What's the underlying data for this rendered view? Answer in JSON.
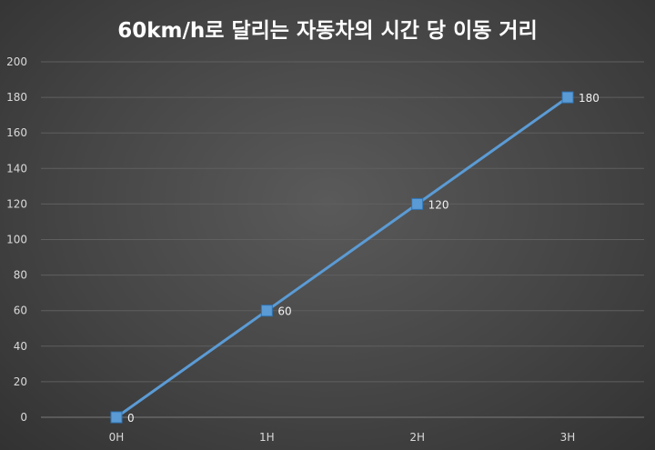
{
  "chart_data": {
    "type": "line",
    "title": "60km/h로 달리는 자동차의 시간 당 이동 거리",
    "categories": [
      "0H",
      "1H",
      "2H",
      "3H"
    ],
    "series": [
      {
        "values": [
          0,
          60,
          120,
          180
        ]
      }
    ],
    "y_ticks": [
      "0",
      "20",
      "40",
      "60",
      "80",
      "100",
      "120",
      "140",
      "160",
      "180",
      "200"
    ],
    "ylim": [
      0,
      200
    ],
    "grid": true,
    "legend": "none",
    "colors": {
      "line": "#5b9bd5",
      "marker": "#5b9bd5",
      "marker_edge": "#2e75b6"
    }
  }
}
